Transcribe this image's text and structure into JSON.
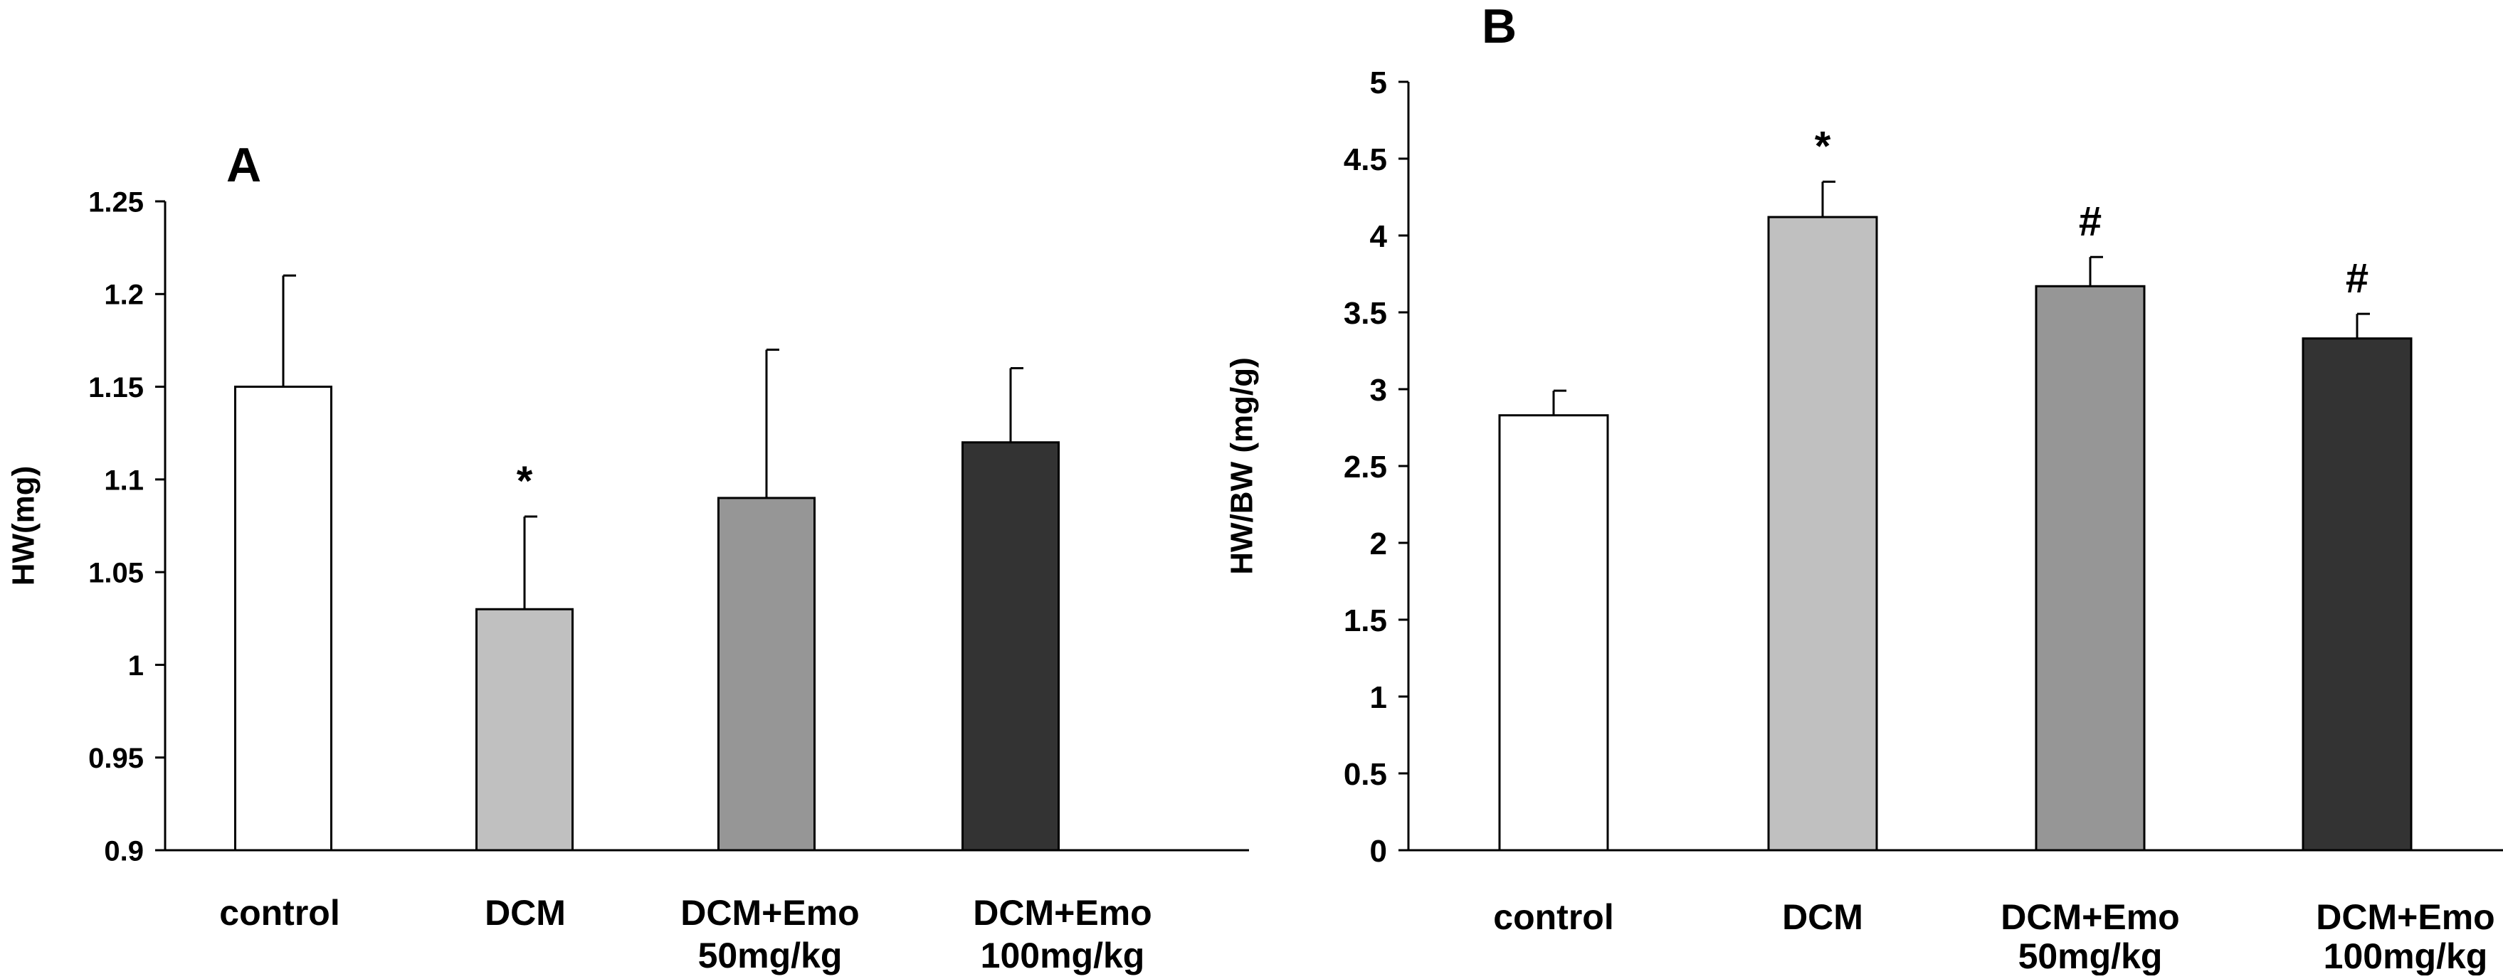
{
  "chart_data": [
    {
      "type": "bar",
      "panel_label": "A",
      "title": "",
      "xlabel": "",
      "ylabel": "HW(mg)",
      "ylim": [
        0.9,
        1.25
      ],
      "yticks": [
        "0.9",
        "0.95",
        "1",
        "1.05",
        "1.1",
        "1.15",
        "1.2",
        "1.25"
      ],
      "ytick_values": [
        0.9,
        0.95,
        1.0,
        1.05,
        1.1,
        1.15,
        1.2,
        1.25
      ],
      "categories": [
        [
          "control"
        ],
        [
          "DCM"
        ],
        [
          "DCM+Emo",
          "50mg/kg"
        ],
        [
          "DCM+Emo",
          "100mg/kg"
        ]
      ],
      "values": [
        1.15,
        1.03,
        1.09,
        1.12
      ],
      "errors": [
        0.06,
        0.05,
        0.08,
        0.04
      ],
      "annotations": [
        "",
        "*",
        "",
        ""
      ],
      "colors": [
        "#ffffff",
        "#c0c0c0",
        "#969696",
        "#333333"
      ]
    },
    {
      "type": "bar",
      "panel_label": "B",
      "title": "",
      "xlabel": "",
      "ylabel": "HW/BW  (mg/g)",
      "ylim": [
        0,
        5
      ],
      "yticks": [
        "0",
        "0.5",
        "1",
        "1.5",
        "2",
        "2.5",
        "3",
        "3.5",
        "4",
        "4.5",
        "5"
      ],
      "ytick_values": [
        0,
        0.5,
        1,
        1.5,
        2,
        2.5,
        3,
        3.5,
        4,
        4.5,
        5
      ],
      "categories": [
        [
          "control"
        ],
        [
          "DCM"
        ],
        [
          "DCM+Emo",
          "50mg/kg"
        ],
        [
          "DCM+Emo",
          "100mg/kg"
        ]
      ],
      "values": [
        2.83,
        4.12,
        3.67,
        3.33
      ],
      "errors": [
        0.16,
        0.23,
        0.19,
        0.16
      ],
      "annotations": [
        "",
        "*",
        "#",
        "#"
      ],
      "colors": [
        "#ffffff",
        "#c0c0c0",
        "#969696",
        "#333333"
      ]
    }
  ]
}
